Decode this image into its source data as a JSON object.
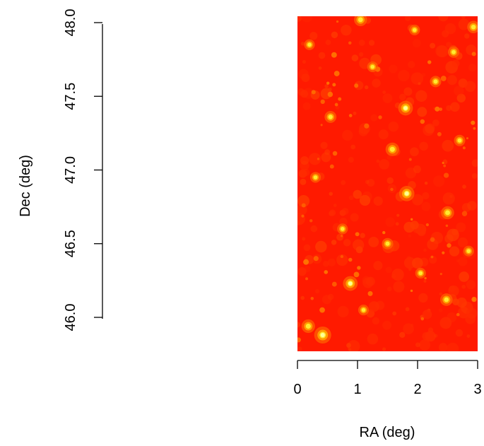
{
  "chart_data": {
    "type": "heatmap",
    "title": "",
    "xlabel": "RA (deg)",
    "ylabel": "Dec (deg)",
    "xlim": [
      0,
      3
    ],
    "ylim": [
      45.75,
      48.05
    ],
    "x_ticks": [
      0,
      1,
      2,
      3
    ],
    "x_tick_labels": [
      "0",
      "1",
      "2",
      "3"
    ],
    "y_ticks": [
      46.0,
      46.5,
      47.0,
      47.5,
      48.0
    ],
    "y_tick_labels": [
      "46.0",
      "46.5",
      "47.0",
      "47.5",
      "48.0"
    ],
    "colormap": [
      "#ff0000",
      "#ff3300",
      "#ff6600",
      "#ffaa00",
      "#ffee33",
      "#ffff99"
    ],
    "background_color": "#ff1a00",
    "grid": false,
    "hotspots": [
      {
        "x": 0.42,
        "y": 45.88,
        "level": 1.0
      },
      {
        "x": 0.18,
        "y": 45.94,
        "level": 0.7
      },
      {
        "x": 0.88,
        "y": 46.23,
        "level": 0.8
      },
      {
        "x": 1.8,
        "y": 47.42,
        "level": 0.8
      },
      {
        "x": 1.82,
        "y": 46.84,
        "level": 0.85
      },
      {
        "x": 1.58,
        "y": 47.14,
        "level": 0.7
      },
      {
        "x": 1.05,
        "y": 48.02,
        "level": 0.65
      },
      {
        "x": 2.5,
        "y": 46.71,
        "level": 0.65
      },
      {
        "x": 2.93,
        "y": 47.97,
        "level": 0.6
      },
      {
        "x": 2.48,
        "y": 46.12,
        "level": 0.6
      },
      {
        "x": 0.55,
        "y": 47.36,
        "level": 0.55
      },
      {
        "x": 2.3,
        "y": 47.6,
        "level": 0.5
      },
      {
        "x": 1.5,
        "y": 46.5,
        "level": 0.5
      },
      {
        "x": 0.3,
        "y": 46.95,
        "level": 0.45
      },
      {
        "x": 2.7,
        "y": 47.2,
        "level": 0.5
      },
      {
        "x": 0.75,
        "y": 46.6,
        "level": 0.45
      },
      {
        "x": 2.05,
        "y": 46.3,
        "level": 0.45
      },
      {
        "x": 1.25,
        "y": 47.7,
        "level": 0.45
      },
      {
        "x": 2.6,
        "y": 47.8,
        "level": 0.5
      },
      {
        "x": 0.2,
        "y": 47.85,
        "level": 0.45
      },
      {
        "x": 1.1,
        "y": 46.05,
        "level": 0.45
      },
      {
        "x": 2.85,
        "y": 46.45,
        "level": 0.45
      },
      {
        "x": 1.95,
        "y": 47.95,
        "level": 0.45
      }
    ]
  }
}
